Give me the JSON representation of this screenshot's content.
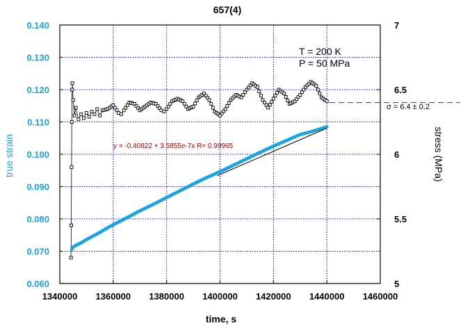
{
  "chart_data": {
    "type": "scatter",
    "title": "657(4)",
    "xlabel": "time, s",
    "ylabel_left": "true strain",
    "ylabel_right": "stress (MPa)",
    "xlim": [
      1340000,
      1460000
    ],
    "ylim_left": [
      0.06,
      0.14
    ],
    "ylim_right": [
      5,
      7
    ],
    "x_ticks": [
      1340000,
      1360000,
      1380000,
      1400000,
      1420000,
      1440000,
      1460000
    ],
    "y_left_ticks": [
      0.06,
      0.07,
      0.08,
      0.09,
      0.1,
      0.11,
      0.12,
      0.13,
      0.14
    ],
    "y_left_tick_labels": [
      "0.060",
      "0.070",
      "0.080",
      "0.090",
      "0.100",
      "0.110",
      "0.120",
      "0.130",
      "0.140"
    ],
    "y_right_ticks": [
      5,
      5.5,
      6,
      6.5,
      7
    ],
    "y_right_tick_labels": [
      "5",
      "5.5",
      "6",
      "6.5",
      "7"
    ],
    "grid": true,
    "colors": {
      "strain": "#1aa5e0",
      "stress": "#000000",
      "fit": "#000000",
      "mean_line": "#cc0000",
      "fit_text": "#aa0000",
      "axis_label_left": "#1aa5e0"
    },
    "annotations": {
      "conditions_line1": "T = 200 K",
      "conditions_line2": "P = 50 MPa",
      "fit_equation": "y = -0.40822 + 3.5855e-7x   R= 0.99965",
      "sigma_label": "σ = 6.4 ± 0.2"
    },
    "mean_stress": 6.4,
    "fit": {
      "intercept": -0.40822,
      "slope": 3.5855e-07,
      "x_range": [
        1399000,
        1440000
      ]
    },
    "series": [
      {
        "role": "strain",
        "axis": "left",
        "marker": "filled-circle",
        "points": [
          [
            1344500,
            0.0706
          ],
          [
            1345000,
            0.0713
          ],
          [
            1346000,
            0.0718
          ],
          [
            1348000,
            0.0726
          ],
          [
            1350000,
            0.0736
          ],
          [
            1352000,
            0.0745
          ],
          [
            1355000,
            0.0758
          ],
          [
            1358000,
            0.0773
          ],
          [
            1360000,
            0.0782
          ],
          [
            1365000,
            0.0803
          ],
          [
            1370000,
            0.0825
          ],
          [
            1375000,
            0.0845
          ],
          [
            1380000,
            0.0866
          ],
          [
            1385000,
            0.0887
          ],
          [
            1390000,
            0.0908
          ],
          [
            1395000,
            0.0928
          ],
          [
            1400000,
            0.0946
          ],
          [
            1405000,
            0.0966
          ],
          [
            1410000,
            0.0986
          ],
          [
            1415000,
            0.1006
          ],
          [
            1420000,
            0.1025
          ],
          [
            1425000,
            0.1043
          ],
          [
            1430000,
            0.1061
          ],
          [
            1435000,
            0.1072
          ],
          [
            1440000,
            0.1085
          ]
        ]
      },
      {
        "role": "stress",
        "axis": "right",
        "marker": "open-square",
        "points": [
          [
            1344200,
            5.2
          ],
          [
            1344300,
            5.45
          ],
          [
            1344400,
            5.9
          ],
          [
            1344500,
            6.25
          ],
          [
            1344600,
            6.5
          ],
          [
            1344700,
            6.55
          ],
          [
            1345000,
            6.42
          ],
          [
            1345500,
            6.3
          ],
          [
            1346000,
            6.36
          ],
          [
            1347000,
            6.27
          ],
          [
            1348000,
            6.31
          ],
          [
            1349000,
            6.28
          ],
          [
            1350000,
            6.32
          ],
          [
            1351000,
            6.29
          ],
          [
            1352000,
            6.33
          ],
          [
            1353000,
            6.31
          ],
          [
            1354000,
            6.35
          ],
          [
            1355000,
            6.3
          ],
          [
            1356000,
            6.34
          ],
          [
            1358000,
            6.35
          ],
          [
            1360000,
            6.38
          ],
          [
            1362000,
            6.32
          ],
          [
            1363000,
            6.31
          ],
          [
            1364000,
            6.34
          ],
          [
            1366000,
            6.4
          ],
          [
            1368000,
            6.39
          ],
          [
            1370000,
            6.34
          ],
          [
            1372000,
            6.37
          ],
          [
            1374000,
            6.4
          ],
          [
            1376000,
            6.39
          ],
          [
            1378000,
            6.34
          ],
          [
            1379000,
            6.33
          ],
          [
            1380000,
            6.35
          ],
          [
            1382000,
            6.41
          ],
          [
            1384000,
            6.43
          ],
          [
            1386000,
            6.41
          ],
          [
            1388000,
            6.35
          ],
          [
            1390000,
            6.37
          ],
          [
            1392000,
            6.44
          ],
          [
            1394000,
            6.47
          ],
          [
            1396000,
            6.42
          ],
          [
            1398000,
            6.33
          ],
          [
            1400000,
            6.3
          ],
          [
            1402000,
            6.35
          ],
          [
            1404000,
            6.42
          ],
          [
            1406000,
            6.46
          ],
          [
            1408000,
            6.44
          ],
          [
            1410000,
            6.5
          ],
          [
            1412000,
            6.55
          ],
          [
            1414000,
            6.52
          ],
          [
            1416000,
            6.42
          ],
          [
            1418000,
            6.36
          ],
          [
            1420000,
            6.43
          ],
          [
            1422000,
            6.5
          ],
          [
            1424000,
            6.47
          ],
          [
            1426000,
            6.39
          ],
          [
            1428000,
            6.41
          ],
          [
            1430000,
            6.46
          ],
          [
            1432000,
            6.52
          ],
          [
            1434000,
            6.56
          ],
          [
            1436000,
            6.53
          ],
          [
            1438000,
            6.44
          ],
          [
            1440000,
            6.41
          ]
        ]
      }
    ]
  }
}
